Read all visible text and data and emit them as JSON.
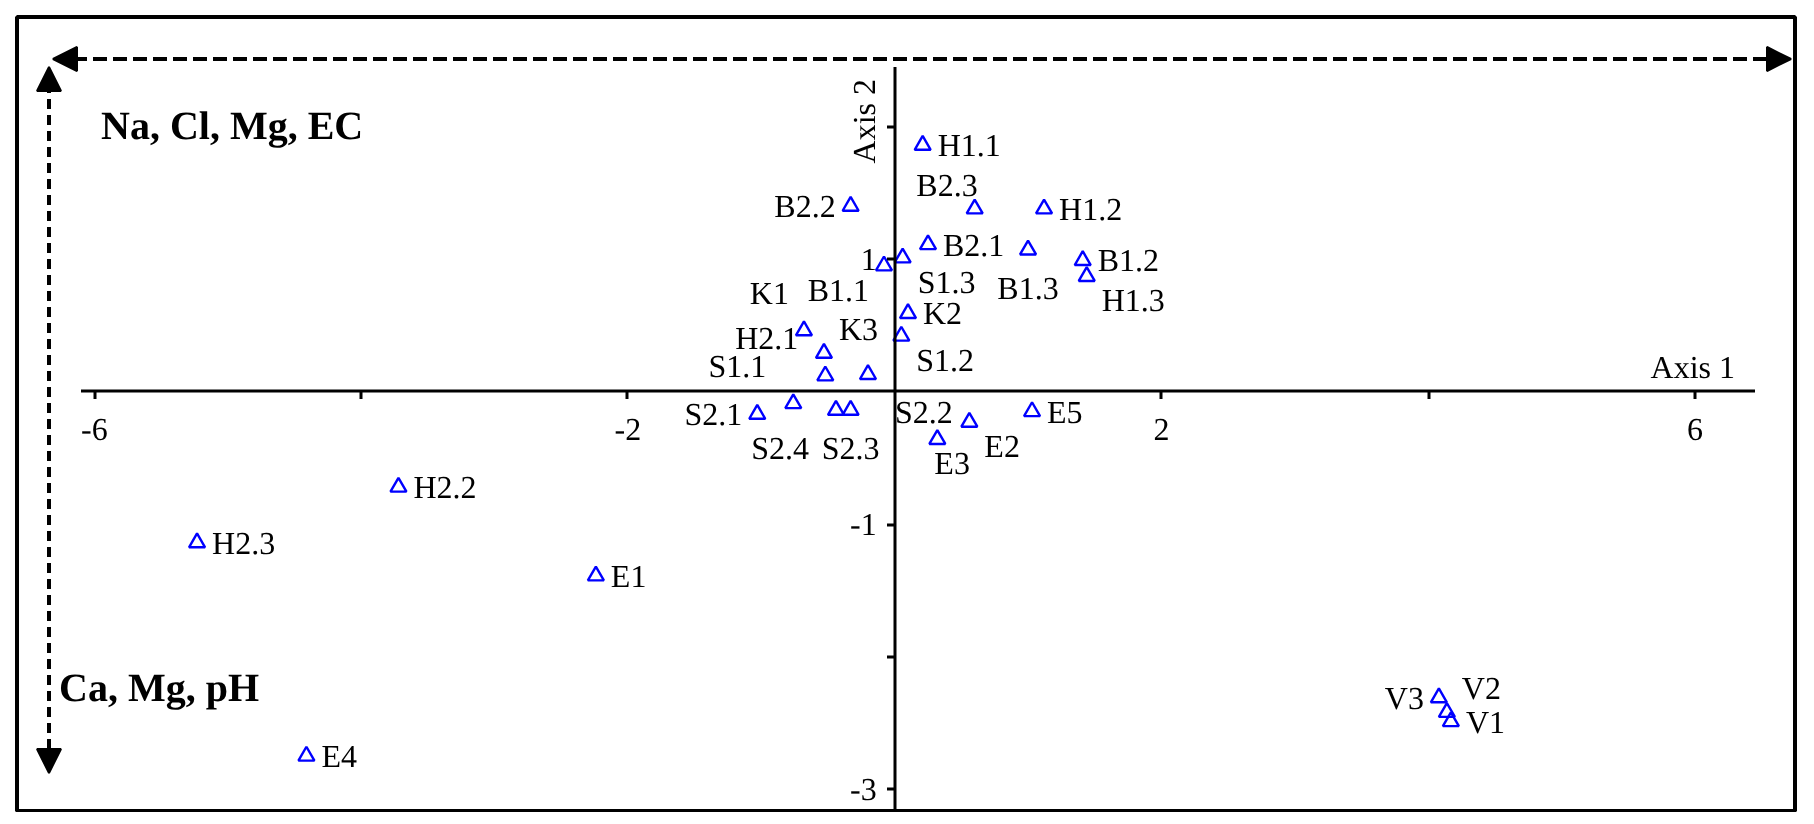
{
  "chart_data": {
    "type": "scatter",
    "xlabel": "Axis 1",
    "ylabel": "Axis 2",
    "annotations": [
      "Na, Cl, Mg, EC",
      "Ca, Mg, pH"
    ],
    "x": [
      0.21,
      -0.33,
      0.6,
      1.12,
      0.25,
      1.0,
      0.06,
      1.41,
      -0.08,
      1.44,
      0.1,
      -0.68,
      0.05,
      -0.53,
      -0.2,
      -0.52,
      -0.76,
      -0.33,
      -0.44,
      1.03,
      -1.03,
      0.56,
      0.32,
      -3.72,
      -5.23,
      -2.24,
      4.08,
      4.14,
      4.17,
      -4.41
    ],
    "series": [
      {
        "color": "#0000ff",
        "values": [
          1.86,
          1.4,
          1.38,
          1.38,
          1.11,
          1.07,
          1.01,
          0.99,
          0.95,
          0.87,
          0.59,
          0.46,
          0.42,
          0.29,
          0.13,
          0.12,
          -0.09,
          -0.14,
          -0.14,
          -0.15,
          -0.17,
          -0.23,
          -0.36,
          -0.72,
          -1.14,
          -1.39,
          -2.31,
          -2.42,
          -2.49,
          -2.75
        ],
        "value_labels": [
          "H1.1",
          "B2.2",
          "B2.3",
          "H1.2",
          "B2.1",
          "B1.3",
          "S1.3",
          "B1.2",
          "B1.1",
          "H1.3",
          "K2",
          "K1",
          "S1.2",
          "K3",
          "S2.2",
          "H2.1",
          "S1.1",
          "S2.3",
          "S2.4",
          "E5",
          "S2.1",
          "E2",
          "E3",
          "H2.2",
          "H2.3",
          "E1",
          "V3",
          "V2",
          "V1",
          "E4"
        ]
      }
    ],
    "marker": "triangle",
    "xlim": [
      -6.1,
      6.45
    ],
    "ylim": [
      -3.15,
      2.45
    ],
    "xticks": [
      -6,
      {
        "value": -4,
        "label": null
      },
      -2,
      2,
      {
        "value": 4,
        "label": null
      },
      6
    ],
    "yticks": [
      -3,
      {
        "value": -2,
        "label": null
      },
      -1,
      1,
      {
        "value": 2,
        "label": null
      }
    ]
  }
}
